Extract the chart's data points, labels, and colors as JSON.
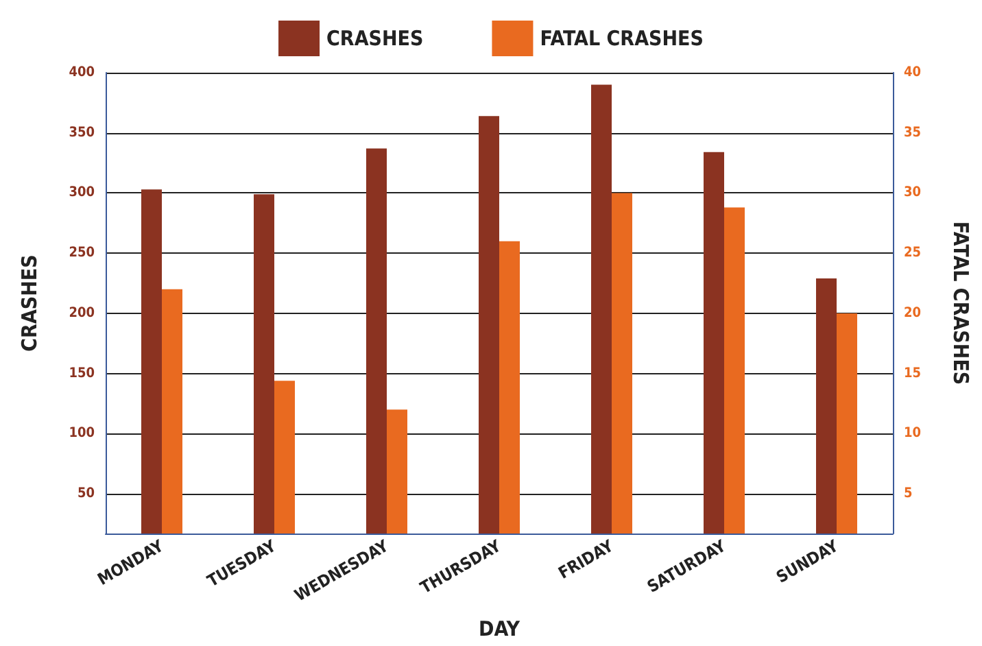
{
  "chart_data": {
    "type": "bar",
    "xlabel": "DAY",
    "ylabel": "CRASHES",
    "y2label": "FATAL CRASHES",
    "categories": [
      "MONDAY",
      "TUESDAY",
      "WEDNESDAY",
      "THURSDAY",
      "FRIDAY",
      "SATURDAY",
      "SUNDAY"
    ],
    "series": [
      {
        "name": "CRASHES",
        "color": "#8b3321",
        "values": [
          303,
          299,
          337,
          364,
          390,
          334,
          229
        ]
      },
      {
        "name": "FATAL CRASHES",
        "color": "#e96a20",
        "axis": "y2",
        "values": [
          22,
          14.4,
          12,
          26,
          30,
          28.8,
          20
        ]
      }
    ],
    "ylim": [
      17,
      400
    ],
    "yticks": [
      50,
      100,
      150,
      200,
      250,
      300,
      350,
      400
    ],
    "y2lim": [
      1.7,
      40
    ],
    "y2ticks": [
      5,
      10,
      15,
      20,
      25,
      30,
      35,
      40
    ],
    "grid": "y",
    "legend": "top"
  }
}
